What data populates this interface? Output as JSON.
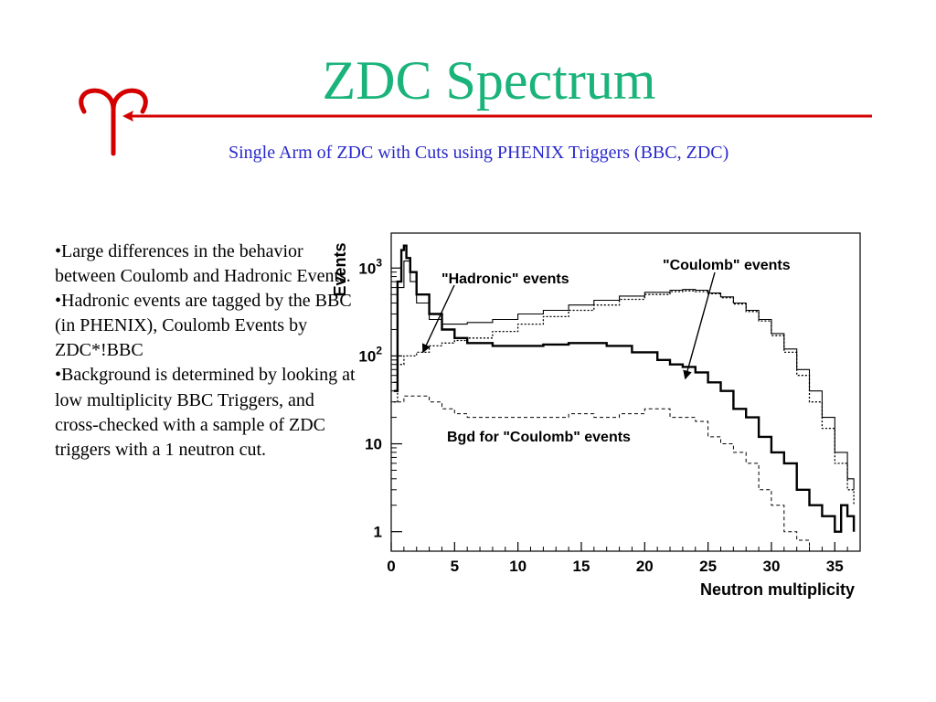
{
  "slide": {
    "title": "ZDC Spectrum",
    "subtitle": "Single Arm of ZDC with Cuts using PHENIX Triggers (BBC, ZDC)",
    "symbol": "aries-symbol",
    "colors": {
      "title": "#1ab37a",
      "subtitle": "#2a2acc",
      "rule": "#d40000"
    },
    "bullets": [
      "•Large differences in the behavior between Coulomb and Hadronic Events.",
      "•Hadronic events are tagged by the BBC (in PHENIX), Coulomb Events by ZDC*!BBC",
      "•Background is determined by looking at low multiplicity BBC Triggers, and cross-checked with a sample of ZDC triggers with a 1 neutron cut."
    ]
  },
  "chart_data": {
    "type": "line",
    "xlabel": "Neutron multiplicity",
    "ylabel": "Events",
    "xlim": [
      0,
      37
    ],
    "ylim": [
      0.6,
      2500
    ],
    "yscale": "log",
    "xticks": [
      0,
      5,
      10,
      15,
      20,
      25,
      30,
      35
    ],
    "yticks": [
      {
        "value": 1,
        "label": "1"
      },
      {
        "value": 10,
        "label": "10"
      },
      {
        "value": 100,
        "label": "10",
        "exp": "2"
      },
      {
        "value": 1000,
        "label": "10",
        "exp": "3"
      }
    ],
    "annotations": [
      {
        "text": "\"Hadronic\" events",
        "arrow_to": [
          2.5,
          110
        ]
      },
      {
        "text": "\"Coulomb\" events",
        "arrow_to": [
          23.2,
          55
        ]
      },
      {
        "text": "Bgd for \"Coulomb\" events"
      }
    ],
    "series": [
      {
        "style": "thick",
        "x": [
          0.2,
          0.5,
          0.8,
          1.0,
          1.2,
          1.5,
          2,
          3,
          4,
          5,
          6,
          8,
          10,
          12,
          14,
          15,
          17,
          19,
          21,
          22,
          23,
          24,
          25,
          26,
          27,
          28,
          29,
          30,
          31,
          32,
          33,
          34,
          35,
          35.5,
          36,
          36.5
        ],
        "y": [
          40,
          700,
          1600,
          1800,
          1300,
          900,
          500,
          300,
          200,
          160,
          140,
          130,
          130,
          135,
          140,
          140,
          130,
          110,
          90,
          80,
          75,
          65,
          50,
          40,
          25,
          20,
          12,
          8,
          6,
          3,
          2,
          1.5,
          1,
          2,
          1.5,
          1
        ]
      },
      {
        "style": "thin",
        "x": [
          0.2,
          0.5,
          1.0,
          1.5,
          2,
          3,
          4,
          5,
          6,
          8,
          10,
          12,
          14,
          16,
          18,
          20,
          22,
          23,
          24,
          25,
          26,
          27,
          28,
          29,
          30,
          31,
          32,
          33,
          34,
          35,
          36,
          36.5
        ],
        "y": [
          50,
          600,
          1200,
          700,
          400,
          260,
          230,
          230,
          240,
          260,
          300,
          330,
          380,
          430,
          480,
          530,
          560,
          570,
          560,
          520,
          470,
          400,
          330,
          260,
          180,
          120,
          70,
          40,
          20,
          8,
          4,
          3
        ]
      },
      {
        "style": "dotted",
        "x": [
          0.2,
          0.5,
          1,
          2,
          3,
          4,
          5,
          6,
          8,
          10,
          12,
          14,
          16,
          18,
          20,
          22,
          23,
          24,
          25,
          26,
          27,
          28,
          29,
          30,
          31,
          32,
          33,
          34,
          35,
          36,
          36.5
        ],
        "y": [
          30,
          80,
          100,
          110,
          130,
          140,
          150,
          160,
          190,
          230,
          280,
          330,
          380,
          440,
          500,
          540,
          550,
          540,
          510,
          460,
          390,
          320,
          250,
          170,
          110,
          60,
          30,
          15,
          6,
          3,
          2
        ]
      },
      {
        "style": "dashed",
        "x": [
          0.5,
          1,
          2,
          3,
          4,
          5,
          6,
          8,
          10,
          12,
          14,
          16,
          18,
          20,
          22,
          24,
          25,
          26,
          27,
          28,
          29,
          30,
          31,
          32,
          33
        ],
        "y": [
          30,
          35,
          35,
          30,
          25,
          22,
          20,
          20,
          20,
          20,
          22,
          20,
          22,
          25,
          20,
          18,
          12,
          10,
          8,
          6,
          3,
          2,
          1,
          0.8,
          0.6
        ]
      }
    ]
  }
}
